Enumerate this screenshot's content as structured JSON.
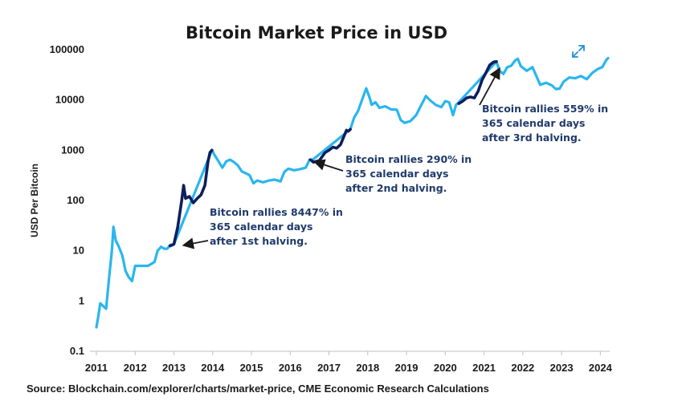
{
  "chart_data": {
    "type": "line",
    "title": "Bitcoin Market Price in USD",
    "xlabel": "",
    "ylabel": "USD Per Bitcoin",
    "yscale": "log",
    "ylim": [
      0.1,
      100000
    ],
    "xlim": [
      2011,
      2024.2
    ],
    "y_tick_labels": [
      "100000",
      "10000",
      "1000",
      "100",
      "10",
      "1",
      "0.1"
    ],
    "y_tick_values": [
      100000,
      10000,
      1000,
      100,
      10,
      1,
      0.1
    ],
    "x_tick_labels": [
      "2011",
      "2012",
      "2013",
      "2014",
      "2015",
      "2016",
      "2017",
      "2018",
      "2019",
      "2020",
      "2021",
      "2022",
      "2023",
      "2024"
    ],
    "x_tick_values": [
      2011,
      2012,
      2013,
      2014,
      2015,
      2016,
      2017,
      2018,
      2019,
      2020,
      2021,
      2022,
      2023,
      2024
    ],
    "colors": {
      "price": "#29b6ef",
      "rally": "#0f1f5c",
      "annotation": "#1f3a6b"
    },
    "series": [
      {
        "name": "price",
        "points": [
          [
            2011.0,
            0.3
          ],
          [
            2011.05,
            0.5
          ],
          [
            2011.1,
            0.9
          ],
          [
            2011.17,
            0.8
          ],
          [
            2011.25,
            0.7
          ],
          [
            2011.33,
            3
          ],
          [
            2011.4,
            10
          ],
          [
            2011.44,
            30
          ],
          [
            2011.5,
            16
          ],
          [
            2011.58,
            12
          ],
          [
            2011.67,
            8
          ],
          [
            2011.75,
            4
          ],
          [
            2011.83,
            3
          ],
          [
            2011.92,
            2.5
          ],
          [
            2012.0,
            5
          ],
          [
            2012.08,
            5
          ],
          [
            2012.17,
            5
          ],
          [
            2012.33,
            5
          ],
          [
            2012.5,
            6
          ],
          [
            2012.58,
            10
          ],
          [
            2012.67,
            12
          ],
          [
            2012.75,
            11
          ],
          [
            2012.83,
            11
          ],
          [
            2012.9,
            13
          ],
          [
            2013.0,
            13.5
          ],
          [
            2013.98,
            1000
          ],
          [
            2014.05,
            800
          ],
          [
            2014.15,
            600
          ],
          [
            2014.25,
            450
          ],
          [
            2014.35,
            600
          ],
          [
            2014.45,
            650
          ],
          [
            2014.55,
            580
          ],
          [
            2014.65,
            500
          ],
          [
            2014.75,
            380
          ],
          [
            2014.85,
            350
          ],
          [
            2014.95,
            320
          ],
          [
            2015.05,
            220
          ],
          [
            2015.15,
            250
          ],
          [
            2015.3,
            230
          ],
          [
            2015.45,
            250
          ],
          [
            2015.6,
            260
          ],
          [
            2015.75,
            240
          ],
          [
            2015.85,
            370
          ],
          [
            2015.95,
            430
          ],
          [
            2016.1,
            400
          ],
          [
            2016.25,
            420
          ],
          [
            2016.4,
            450
          ],
          [
            2016.5,
            650
          ],
          [
            2016.58,
            650
          ],
          [
            2017.55,
            2600
          ],
          [
            2017.65,
            4500
          ],
          [
            2017.75,
            6000
          ],
          [
            2017.85,
            10000
          ],
          [
            2017.96,
            17000
          ],
          [
            2018.05,
            11000
          ],
          [
            2018.1,
            8000
          ],
          [
            2018.2,
            9000
          ],
          [
            2018.3,
            7000
          ],
          [
            2018.45,
            7500
          ],
          [
            2018.6,
            6500
          ],
          [
            2018.75,
            6400
          ],
          [
            2018.85,
            4000
          ],
          [
            2018.95,
            3500
          ],
          [
            2019.1,
            3800
          ],
          [
            2019.25,
            5000
          ],
          [
            2019.4,
            8500
          ],
          [
            2019.5,
            12000
          ],
          [
            2019.6,
            10000
          ],
          [
            2019.75,
            8000
          ],
          [
            2019.9,
            7200
          ],
          [
            2020.0,
            9500
          ],
          [
            2020.1,
            9000
          ],
          [
            2020.2,
            5000
          ],
          [
            2020.28,
            8000
          ],
          [
            2020.35,
            9000
          ],
          [
            2021.32,
            58000
          ],
          [
            2021.4,
            38000
          ],
          [
            2021.5,
            33000
          ],
          [
            2021.6,
            45000
          ],
          [
            2021.7,
            48000
          ],
          [
            2021.8,
            61000
          ],
          [
            2021.87,
            66000
          ],
          [
            2021.95,
            47000
          ],
          [
            2022.1,
            38000
          ],
          [
            2022.25,
            45000
          ],
          [
            2022.35,
            30000
          ],
          [
            2022.45,
            20000
          ],
          [
            2022.6,
            22000
          ],
          [
            2022.75,
            19500
          ],
          [
            2022.85,
            16500
          ],
          [
            2022.95,
            16800
          ],
          [
            2023.05,
            23000
          ],
          [
            2023.2,
            28000
          ],
          [
            2023.35,
            27000
          ],
          [
            2023.5,
            30000
          ],
          [
            2023.65,
            26000
          ],
          [
            2023.8,
            35000
          ],
          [
            2023.95,
            42000
          ],
          [
            2024.05,
            45000
          ],
          [
            2024.15,
            62000
          ],
          [
            2024.2,
            68000
          ]
        ]
      },
      {
        "name": "rally-1st-halving",
        "points": [
          [
            2012.9,
            12.5
          ],
          [
            2013.0,
            13.5
          ],
          [
            2013.1,
            30
          ],
          [
            2013.2,
            100
          ],
          [
            2013.25,
            200
          ],
          [
            2013.3,
            110
          ],
          [
            2013.4,
            120
          ],
          [
            2013.5,
            90
          ],
          [
            2013.6,
            110
          ],
          [
            2013.7,
            130
          ],
          [
            2013.8,
            200
          ],
          [
            2013.88,
            600
          ],
          [
            2013.93,
            900
          ],
          [
            2013.98,
            1000
          ]
        ]
      },
      {
        "name": "rally-2nd-halving",
        "points": [
          [
            2016.52,
            650
          ],
          [
            2016.6,
            580
          ],
          [
            2016.75,
            620
          ],
          [
            2016.9,
            900
          ],
          [
            2017.0,
            1000
          ],
          [
            2017.1,
            1150
          ],
          [
            2017.2,
            1100
          ],
          [
            2017.3,
            1300
          ],
          [
            2017.4,
            2000
          ],
          [
            2017.45,
            2500
          ],
          [
            2017.5,
            2400
          ],
          [
            2017.55,
            2600
          ]
        ]
      },
      {
        "name": "rally-3rd-halving",
        "points": [
          [
            2020.35,
            8500
          ],
          [
            2020.45,
            9500
          ],
          [
            2020.55,
            11000
          ],
          [
            2020.65,
            11500
          ],
          [
            2020.75,
            11000
          ],
          [
            2020.85,
            15000
          ],
          [
            2020.95,
            25000
          ],
          [
            2021.05,
            35000
          ],
          [
            2021.15,
            50000
          ],
          [
            2021.25,
            57000
          ],
          [
            2021.32,
            58000
          ]
        ]
      }
    ],
    "annotations": [
      {
        "lines": [
          "Bitcoin rallies 8447% in",
          "365 calendar days",
          "after 1st halving."
        ],
        "target": [
          2013.2,
          13
        ]
      },
      {
        "lines": [
          "Bitcoin rallies 290% in",
          "365 calendar days",
          "after 2nd halving."
        ],
        "target": [
          2016.58,
          580
        ]
      },
      {
        "lines": [
          "Bitcoin rallies 559% in",
          "365 calendar days",
          "after 3rd halving."
        ],
        "target": [
          2021.3,
          40000
        ]
      }
    ],
    "source": "Source: Blockchain.com/explorer/charts/market-price,  CME Economic Research Calculations"
  },
  "controls": {
    "expand_icon": "expand-icon"
  }
}
